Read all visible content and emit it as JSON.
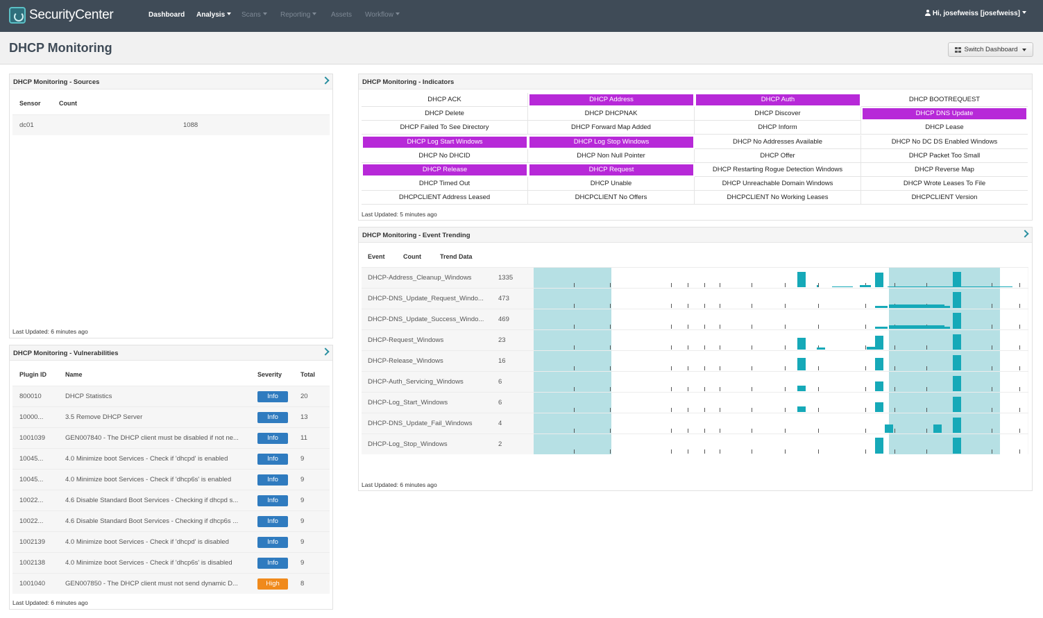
{
  "app": {
    "name": "SecurityCenter",
    "nav": [
      {
        "label": "Dashboard",
        "state": "normal"
      },
      {
        "label": "Analysis",
        "state": "active"
      },
      {
        "label": "Scans",
        "state": "disabled"
      },
      {
        "label": "Reporting",
        "state": "disabled"
      },
      {
        "label": "Assets",
        "state": "disabled"
      },
      {
        "label": "Workflow",
        "state": "disabled"
      }
    ],
    "user": "Hi, josefweiss [josefweiss]"
  },
  "page": {
    "title": "DHCP Monitoring",
    "switch_label": "Switch Dashboard"
  },
  "sources": {
    "title": "DHCP Monitoring - Sources",
    "col_sensor": "Sensor",
    "col_count": "Count",
    "rows": [
      {
        "sensor": "dc01",
        "count": "1088"
      }
    ],
    "updated": "Last Updated: 6 minutes ago"
  },
  "vulns": {
    "title": "DHCP Monitoring - Vulnerabilities",
    "col_plugin": "Plugin ID",
    "col_name": "Name",
    "col_severity": "Severity",
    "col_total": "Total",
    "rows": [
      {
        "id": "800010",
        "name": "DHCP Statistics",
        "severity": "Info",
        "total": "20"
      },
      {
        "id": "10000...",
        "name": "3.5 Remove DHCP Server",
        "severity": "Info",
        "total": "13"
      },
      {
        "id": "1001039",
        "name": "GEN007840 - The DHCP client must be disabled if not ne...",
        "severity": "Info",
        "total": "11"
      },
      {
        "id": "10045...",
        "name": "4.0 Minimize boot Services - Check if 'dhcpd' is enabled",
        "severity": "Info",
        "total": "9"
      },
      {
        "id": "10045...",
        "name": "4.0 Minimize boot Services - Check if 'dhcp6s' is enabled",
        "severity": "Info",
        "total": "9"
      },
      {
        "id": "10022...",
        "name": "4.6 Disable Standard Boot Services - Checking if dhcpd s...",
        "severity": "Info",
        "total": "9"
      },
      {
        "id": "10022...",
        "name": "4.6 Disable Standard Boot Services - Checking if dhcp6s ...",
        "severity": "Info",
        "total": "9"
      },
      {
        "id": "1002139",
        "name": "4.0 Minimize boot Services - Check if 'dhcpd' is disabled",
        "severity": "Info",
        "total": "9"
      },
      {
        "id": "1002138",
        "name": "4.0 Minimize boot Services - Check if 'dhcp6s' is disabled",
        "severity": "Info",
        "total": "9"
      },
      {
        "id": "1001040",
        "name": "GEN007850 - The DHCP client must not send dynamic D...",
        "severity": "High",
        "total": "8"
      }
    ],
    "updated": "Last Updated: 6 minutes ago"
  },
  "colors": {
    "info": "#2f7bbf",
    "high": "#f08a1c",
    "active_indicator": "#b729d8",
    "trend": "#16a9b8",
    "trend_band": "#b6e0e4"
  },
  "indicators": {
    "title": "DHCP Monitoring - Indicators",
    "items": [
      {
        "label": "DHCP ACK",
        "on": false
      },
      {
        "label": "DHCP Address",
        "on": true
      },
      {
        "label": "DHCP Auth",
        "on": true
      },
      {
        "label": "DHCP BOOTREQUEST",
        "on": false
      },
      {
        "label": "DHCP Delete",
        "on": false
      },
      {
        "label": "DHCP DHCPNAK",
        "on": false
      },
      {
        "label": "DHCP Discover",
        "on": false
      },
      {
        "label": "DHCP DNS Update",
        "on": true
      },
      {
        "label": "DHCP Failed To See Directory",
        "on": false
      },
      {
        "label": "DHCP Forward Map Added",
        "on": false
      },
      {
        "label": "DHCP Inform",
        "on": false
      },
      {
        "label": "DHCP Lease",
        "on": false
      },
      {
        "label": "DHCP Log Start Windows",
        "on": true
      },
      {
        "label": "DHCP Log Stop Windows",
        "on": true
      },
      {
        "label": "DHCP No Addresses Available",
        "on": false
      },
      {
        "label": "DHCP No DC DS Enabled Windows",
        "on": false
      },
      {
        "label": "DHCP No DHCID",
        "on": false
      },
      {
        "label": "DHCP Non Null Pointer",
        "on": false
      },
      {
        "label": "DHCP Offer",
        "on": false
      },
      {
        "label": "DHCP Packet Too Small",
        "on": false
      },
      {
        "label": "DHCP Release",
        "on": true
      },
      {
        "label": "DHCP Request",
        "on": true
      },
      {
        "label": "DHCP Restarting Rogue Detection Windows",
        "on": false
      },
      {
        "label": "DHCP Reverse Map",
        "on": false
      },
      {
        "label": "DHCP Timed Out",
        "on": false
      },
      {
        "label": "DHCP Unable",
        "on": false
      },
      {
        "label": "DHCP Unreachable Domain Windows",
        "on": false
      },
      {
        "label": "DHCP Wrote Leases To File",
        "on": false
      },
      {
        "label": "DHCPCLIENT Address Leased",
        "on": false
      },
      {
        "label": "DHCPCLIENT No Offers",
        "on": false
      },
      {
        "label": "DHCPCLIENT No Working Leases",
        "on": false
      },
      {
        "label": "DHCPCLIENT Version",
        "on": false
      }
    ],
    "updated": "Last Updated: 5 minutes ago"
  },
  "trending": {
    "title": "DHCP Monitoring - Event Trending",
    "col_event": "Event",
    "col_count": "Count",
    "col_trend": "Trend Data",
    "rows": [
      {
        "event": "DHCP-Address_Cleanup_Windows",
        "count": "1335"
      },
      {
        "event": "DHCP-DNS_Update_Request_Windo...",
        "count": "473"
      },
      {
        "event": "DHCP-DNS_Update_Success_Windo...",
        "count": "469"
      },
      {
        "event": "DHCP-Request_Windows",
        "count": "23"
      },
      {
        "event": "DHCP-Release_Windows",
        "count": "16"
      },
      {
        "event": "DHCP-Auth_Servicing_Windows",
        "count": "6"
      },
      {
        "event": "DHCP-Log_Start_Windows",
        "count": "6"
      },
      {
        "event": "DHCP-DNS_Update_Fail_Windows",
        "count": "4"
      },
      {
        "event": "DHCP-Log_Stop_Windows",
        "count": "2"
      }
    ],
    "updated": "Last Updated: 6 minutes ago"
  }
}
